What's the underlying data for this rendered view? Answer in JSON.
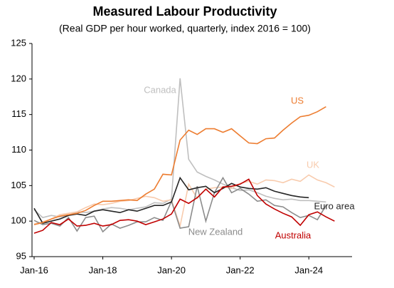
{
  "chart_data": {
    "type": "line",
    "title": "Measured Labour Productivity",
    "subtitle": "(Real GDP per hour worked, quarterly, index 2016 = 100)",
    "categories": [
      "Jan-16",
      null,
      null,
      null,
      null,
      null,
      null,
      null,
      "Jan-18",
      null,
      null,
      null,
      null,
      null,
      null,
      null,
      "Jan-20",
      null,
      null,
      null,
      null,
      null,
      null,
      null,
      "Jan-22",
      null,
      null,
      null,
      null,
      null,
      null,
      null,
      "Jan-24",
      null,
      null,
      null
    ],
    "ylim": [
      95,
      125
    ],
    "yticks": [
      95,
      100,
      105,
      110,
      115,
      120,
      125
    ],
    "series": [
      {
        "name": "Canada",
        "color": "#bfbfbf",
        "values": [
          101.6,
          100.5,
          100.8,
          100.6,
          100.8,
          101.3,
          101.2,
          101.4,
          101.7,
          101.9,
          101.8,
          101.6,
          101.8,
          102.0,
          102.6,
          102.5,
          103.1,
          120.1,
          108.7,
          106.9,
          106.3,
          105.8,
          105.2,
          104.7,
          104.3,
          104.4,
          104.0,
          103.5,
          103.2,
          103.0,
          103.1,
          102.9,
          102.9,
          102.8,
          102.7,
          null
        ]
      },
      {
        "name": "UK",
        "color": "#f8cbad",
        "values": [
          99.6,
          99.9,
          100.3,
          100.9,
          101.1,
          101.3,
          101.9,
          102.4,
          102.3,
          102.5,
          102.8,
          102.9,
          103.2,
          103.5,
          103.3,
          102.8,
          103.0,
          99.3,
          105.2,
          103.2,
          104.5,
          104.7,
          104.8,
          104.6,
          105.3,
          105.6,
          105.2,
          105.8,
          105.7,
          105.4,
          105.9,
          105.6,
          106.5,
          105.8,
          105.4,
          104.8
        ]
      },
      {
        "name": "New Zealand",
        "color": "#8c8c8c",
        "values": [
          100.1,
          99.5,
          99.7,
          99.3,
          100.5,
          98.6,
          100.5,
          100.7,
          98.5,
          99.6,
          99.0,
          99.4,
          99.9,
          99.9,
          100.5,
          100.1,
          102.8,
          99.0,
          99.2,
          104.9,
          100.0,
          104.0,
          106.1,
          104.0,
          104.6,
          103.8,
          102.8,
          103.0,
          102.2,
          102.0,
          101.2,
          100.5,
          100.8,
          100.2,
          102.2,
          null
        ]
      },
      {
        "name": "Euro area",
        "color": "#262626",
        "values": [
          101.8,
          99.7,
          100.0,
          100.3,
          100.8,
          101.0,
          100.8,
          101.4,
          101.6,
          101.4,
          101.2,
          101.6,
          101.4,
          101.8,
          102.2,
          102.2,
          102.7,
          106.1,
          104.4,
          104.7,
          104.9,
          104.0,
          104.6,
          105.3,
          104.8,
          104.6,
          104.5,
          104.7,
          104.2,
          103.9,
          103.6,
          103.4,
          103.3,
          null,
          null,
          null
        ]
      },
      {
        "name": "US",
        "color": "#ed7d31",
        "values": [
          99.5,
          99.8,
          100.3,
          100.7,
          100.9,
          101.1,
          101.5,
          102.2,
          102.8,
          102.8,
          102.9,
          103.0,
          102.9,
          103.8,
          104.5,
          106.6,
          106.5,
          111.4,
          112.8,
          112.2,
          113.0,
          113.0,
          112.5,
          113.0,
          112.0,
          111.0,
          110.9,
          111.6,
          111.7,
          112.8,
          113.8,
          114.7,
          114.9,
          115.4,
          116.1,
          null
        ]
      },
      {
        "name": "Australia",
        "color": "#c00000",
        "values": [
          98.3,
          98.7,
          99.8,
          99.5,
          100.3,
          99.3,
          99.4,
          99.7,
          99.3,
          99.5,
          100.1,
          100.2,
          100.0,
          99.5,
          99.9,
          100.3,
          101.0,
          103.1,
          102.5,
          103.3,
          104.5,
          103.4,
          104.8,
          104.9,
          105.2,
          105.9,
          103.6,
          102.4,
          101.7,
          101.1,
          100.6,
          99.4,
          100.9,
          101.3,
          100.6,
          100.0
        ]
      }
    ]
  }
}
